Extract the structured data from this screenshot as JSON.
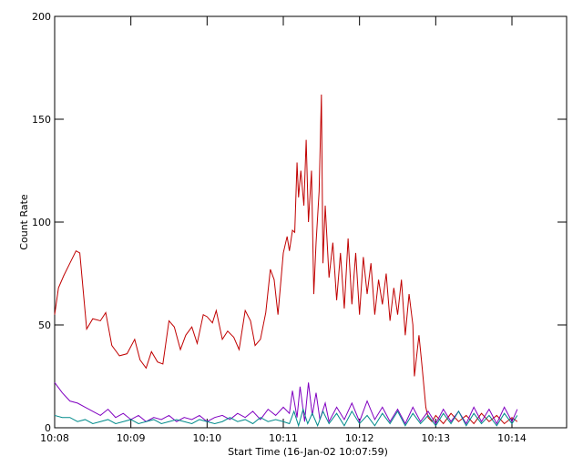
{
  "chart_data": {
    "type": "line",
    "xlabel": "Start Time (16-Jan-02 10:07:59)",
    "ylabel": "Count Rate",
    "xlim": [
      8,
      14.717
    ],
    "xticks": [
      {
        "value": 8,
        "label": "10:08"
      },
      {
        "value": 9,
        "label": "10:09"
      },
      {
        "value": 10,
        "label": "10:10"
      },
      {
        "value": 11,
        "label": "10:11"
      },
      {
        "value": 12,
        "label": "10:12"
      },
      {
        "value": 13,
        "label": "10:13"
      },
      {
        "value": 14,
        "label": "10:14"
      }
    ],
    "ylim": [
      0,
      200
    ],
    "yticks": [
      0,
      50,
      100,
      150,
      200
    ],
    "series": [
      {
        "color": "#c00000",
        "x": [
          8.0,
          8.05,
          8.12,
          8.2,
          8.28,
          8.33,
          8.42,
          8.5,
          8.6,
          8.67,
          8.75,
          8.85,
          8.95,
          9.05,
          9.12,
          9.2,
          9.27,
          9.35,
          9.42,
          9.5,
          9.57,
          9.65,
          9.72,
          9.8,
          9.87,
          9.95,
          10.0,
          10.07,
          10.12,
          10.2,
          10.27,
          10.35,
          10.42,
          10.5,
          10.57,
          10.63,
          10.7,
          10.77,
          10.83,
          10.88,
          10.93,
          11.0,
          11.05,
          11.08,
          11.12,
          11.15,
          11.18,
          11.2,
          11.23,
          11.27,
          11.3,
          11.33,
          11.37,
          11.4,
          11.43,
          11.47,
          11.5,
          11.52,
          11.55,
          11.6,
          11.65,
          11.7,
          11.75,
          11.8,
          11.85,
          11.9,
          11.95,
          12.0,
          12.05,
          12.1,
          12.15,
          12.2,
          12.25,
          12.3,
          12.35,
          12.4,
          12.45,
          12.5,
          12.55,
          12.6,
          12.65,
          12.7,
          12.72,
          12.78,
          12.82,
          12.87,
          12.9,
          12.95,
          13.0,
          13.1,
          13.2,
          13.3,
          13.4,
          13.5,
          13.6,
          13.7,
          13.8,
          13.9,
          14.0,
          14.07
        ],
        "values": [
          55,
          68,
          74,
          80,
          86,
          85,
          48,
          53,
          52,
          56,
          40,
          35,
          36,
          43,
          33,
          29,
          37,
          32,
          31,
          52,
          49,
          38,
          45,
          49,
          41,
          55,
          54,
          51,
          57,
          43,
          47,
          44,
          38,
          57,
          52,
          40,
          43,
          56,
          77,
          72,
          55,
          85,
          93,
          86,
          96,
          95,
          129,
          112,
          125,
          108,
          140,
          100,
          125,
          65,
          90,
          115,
          162,
          80,
          108,
          73,
          90,
          62,
          85,
          58,
          92,
          60,
          85,
          55,
          83,
          65,
          80,
          55,
          72,
          60,
          75,
          52,
          68,
          55,
          72,
          45,
          65,
          50,
          25,
          45,
          30,
          10,
          5,
          3,
          6,
          2,
          7,
          3,
          6,
          2,
          7,
          3,
          6,
          2,
          5,
          3
        ]
      },
      {
        "color": "#8000c0",
        "x": [
          8.0,
          8.1,
          8.2,
          8.3,
          8.4,
          8.5,
          8.6,
          8.7,
          8.8,
          8.9,
          9.0,
          9.1,
          9.2,
          9.3,
          9.4,
          9.5,
          9.6,
          9.7,
          9.8,
          9.9,
          10.0,
          10.1,
          10.2,
          10.3,
          10.4,
          10.5,
          10.6,
          10.7,
          10.8,
          10.9,
          11.0,
          11.08,
          11.12,
          11.18,
          11.22,
          11.28,
          11.33,
          11.38,
          11.43,
          11.48,
          11.55,
          11.6,
          11.7,
          11.8,
          11.9,
          12.0,
          12.1,
          12.2,
          12.3,
          12.4,
          12.5,
          12.6,
          12.7,
          12.8,
          12.9,
          13.0,
          13.1,
          13.2,
          13.3,
          13.4,
          13.5,
          13.6,
          13.7,
          13.8,
          13.9,
          14.0,
          14.07
        ],
        "values": [
          22,
          17,
          13,
          12,
          10,
          8,
          6,
          9,
          5,
          7,
          4,
          6,
          3,
          5,
          4,
          6,
          3,
          5,
          4,
          6,
          3,
          5,
          6,
          4,
          7,
          5,
          8,
          4,
          9,
          6,
          10,
          7,
          18,
          5,
          20,
          3,
          22,
          6,
          17,
          4,
          12,
          3,
          10,
          4,
          12,
          3,
          13,
          4,
          10,
          3,
          9,
          2,
          10,
          3,
          8,
          2,
          9,
          3,
          8,
          2,
          10,
          3,
          9,
          2,
          10,
          3,
          9
        ]
      },
      {
        "color": "#008b8b",
        "x": [
          8.0,
          8.1,
          8.2,
          8.3,
          8.4,
          8.5,
          8.6,
          8.7,
          8.8,
          8.9,
          9.0,
          9.1,
          9.2,
          9.3,
          9.4,
          9.5,
          9.6,
          9.7,
          9.8,
          9.9,
          10.0,
          10.1,
          10.2,
          10.3,
          10.4,
          10.5,
          10.6,
          10.7,
          10.8,
          10.9,
          11.0,
          11.08,
          11.14,
          11.2,
          11.26,
          11.32,
          11.38,
          11.45,
          11.52,
          11.6,
          11.7,
          11.8,
          11.9,
          12.0,
          12.1,
          12.2,
          12.3,
          12.4,
          12.5,
          12.6,
          12.7,
          12.8,
          12.9,
          13.0,
          13.1,
          13.2,
          13.3,
          13.4,
          13.5,
          13.6,
          13.7,
          13.8,
          13.9,
          14.0,
          14.07
        ],
        "values": [
          6,
          5,
          5,
          3,
          4,
          2,
          3,
          4,
          2,
          3,
          4,
          2,
          3,
          4,
          2,
          3,
          4,
          3,
          2,
          4,
          3,
          2,
          3,
          5,
          3,
          4,
          2,
          5,
          3,
          4,
          3,
          2,
          8,
          1,
          9,
          2,
          7,
          1,
          8,
          2,
          7,
          1,
          8,
          2,
          6,
          1,
          7,
          2,
          8,
          1,
          7,
          2,
          6,
          1,
          7,
          2,
          8,
          1,
          7,
          2,
          6,
          1,
          7,
          2,
          6
        ]
      }
    ]
  }
}
